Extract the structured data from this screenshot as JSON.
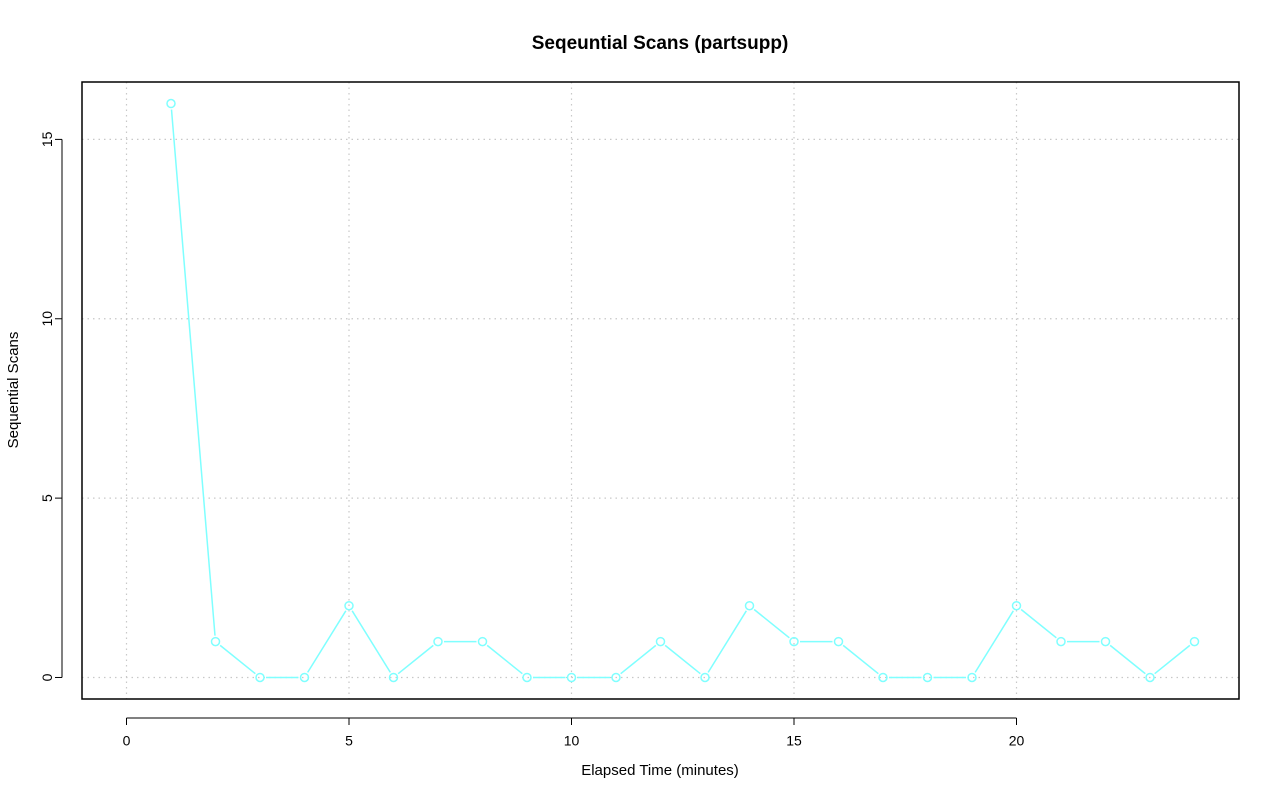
{
  "chart_data": {
    "type": "line",
    "title": "Seqeuntial Scans (partsupp)",
    "xlabel": "Elapsed Time (minutes)",
    "ylabel": "Sequential Scans",
    "xlim": [
      -1,
      25
    ],
    "ylim": [
      -0.6,
      16.6
    ],
    "x_ticks": [
      0,
      5,
      10,
      15,
      20
    ],
    "y_ticks": [
      0,
      5,
      10,
      15
    ],
    "grid": true,
    "series": [
      {
        "color": "#7fffff",
        "marker": "open-circle",
        "x": [
          1,
          2,
          3,
          4,
          5,
          6,
          7,
          8,
          9,
          10,
          11,
          12,
          13,
          14,
          15,
          16,
          17,
          18,
          19,
          20,
          21,
          22,
          23,
          24
        ],
        "y": [
          16,
          1,
          0,
          0,
          2,
          0,
          1,
          1,
          0,
          0,
          0,
          1,
          0,
          2,
          1,
          1,
          0,
          0,
          0,
          2,
          1,
          1,
          0,
          1
        ]
      }
    ]
  }
}
